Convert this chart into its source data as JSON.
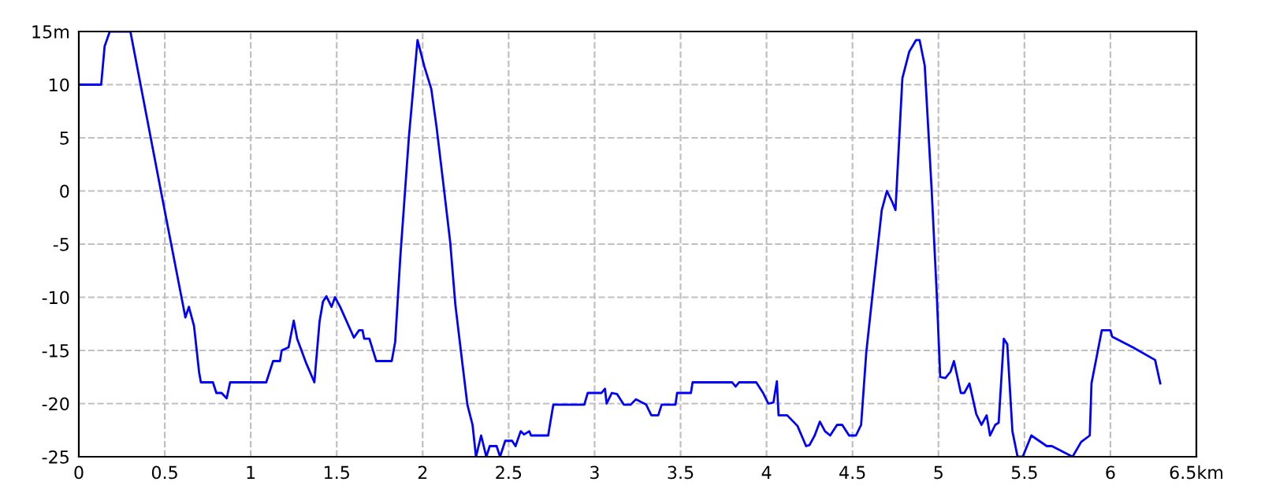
{
  "chart_data": {
    "type": "line",
    "grid": true,
    "legend": false,
    "marker": "none",
    "line_style": "solid",
    "xlim": [
      0,
      6.5
    ],
    "ylim": [
      -25,
      15
    ],
    "xticks": [
      0,
      0.5,
      1,
      1.5,
      2,
      2.5,
      3,
      3.5,
      4,
      4.5,
      5,
      5.5,
      6,
      {
        "value": 6.5,
        "label": "6.5km"
      }
    ],
    "yticks": [
      -25,
      -20,
      -15,
      -10,
      -5,
      0,
      5,
      10,
      {
        "value": 15,
        "label": "15m"
      }
    ],
    "series": [
      {
        "color": "#0000ff",
        "x": [
          0,
          0.13,
          0.15,
          0.18,
          0.3,
          0.475,
          0.62,
          0.64,
          0.67,
          0.7,
          0.71,
          0.78,
          0.8,
          0.83,
          0.86,
          0.88,
          1.09,
          1.13,
          1.17,
          1.18,
          1.22,
          1.25,
          1.27,
          1.32,
          1.37,
          1.4,
          1.42,
          1.44,
          1.47,
          1.49,
          1.52,
          1.6,
          1.63,
          1.65,
          1.66,
          1.69,
          1.73,
          1.82,
          1.84,
          1.87,
          1.92,
          1.97,
          2.01,
          2.05,
          2.08,
          2.12,
          2.16,
          2.19,
          2.23,
          2.26,
          2.29,
          2.31,
          2.34,
          2.37,
          2.39,
          2.43,
          2.45,
          2.48,
          2.52,
          2.54,
          2.57,
          2.59,
          2.62,
          2.63,
          2.73,
          2.74,
          2.76,
          2.94,
          2.96,
          3.04,
          3.06,
          3.07,
          3.1,
          3.13,
          3.17,
          3.21,
          3.24,
          3.3,
          3.33,
          3.37,
          3.39,
          3.47,
          3.48,
          3.56,
          3.57,
          3.8,
          3.82,
          3.84,
          3.94,
          3.98,
          4.01,
          4.04,
          4.06,
          4.07,
          4.12,
          4.18,
          4.23,
          4.25,
          4.28,
          4.31,
          4.34,
          4.37,
          4.41,
          4.44,
          4.48,
          4.52,
          4.55,
          4.58,
          4.62,
          4.67,
          4.7,
          4.73,
          4.75,
          4.79,
          4.83,
          4.87,
          4.89,
          4.92,
          4.96,
          4.99,
          5.01,
          5.04,
          5.07,
          5.09,
          5.13,
          5.15,
          5.18,
          5.22,
          5.25,
          5.28,
          5.3,
          5.33,
          5.35,
          5.38,
          5.4,
          5.43,
          5.46,
          5.49,
          5.54,
          5.63,
          5.66,
          5.78,
          5.83,
          5.88,
          5.89,
          5.95,
          6.0,
          6.01,
          6.13,
          6.26,
          6.29
        ],
        "values": [
          10,
          10,
          13.6,
          15,
          15,
          0.2,
          -11.9,
          -10.9,
          -12.7,
          -17.1,
          -18,
          -18,
          -19,
          -19,
          -19.5,
          -18,
          -18,
          -16,
          -16,
          -15,
          -14.7,
          -12.2,
          -13.9,
          -16.1,
          -18,
          -12.3,
          -10.4,
          -9.9,
          -10.9,
          -10,
          -10.9,
          -13.8,
          -13.1,
          -13.1,
          -13.9,
          -13.9,
          -16,
          -16,
          -14.2,
          -6.2,
          5.1,
          14.2,
          11.7,
          9.6,
          6.1,
          0.7,
          -4.8,
          -10.7,
          -16.1,
          -20.1,
          -22,
          -25,
          -23,
          -25,
          -24,
          -24,
          -25,
          -23.5,
          -23.5,
          -24,
          -22.6,
          -22.9,
          -22.6,
          -23,
          -23,
          -22,
          -20.1,
          -20.1,
          -19,
          -19,
          -18.6,
          -20,
          -19,
          -19.1,
          -20.1,
          -20.1,
          -19.6,
          -20.1,
          -21.1,
          -21.1,
          -20.1,
          -20.1,
          -19,
          -19,
          -18,
          -18,
          -18.4,
          -18,
          -18,
          -19,
          -20,
          -19.9,
          -17.9,
          -21.1,
          -21.1,
          -22.1,
          -24,
          -23.9,
          -23,
          -21.7,
          -22.6,
          -23,
          -22,
          -22,
          -23,
          -23,
          -22,
          -15.2,
          -9.2,
          -1.8,
          0,
          -1,
          -1.8,
          10.6,
          13.1,
          14.2,
          14.2,
          11.8,
          0.2,
          -9.7,
          -17.5,
          -17.6,
          -17,
          -16,
          -19,
          -19,
          -18.1,
          -21,
          -22,
          -21.1,
          -23,
          -22,
          -21.8,
          -13.9,
          -14.4,
          -22.6,
          -25,
          -25,
          -23,
          -24,
          -24,
          -25,
          -23.6,
          -23,
          -18.1,
          -13.1,
          -13.1,
          -13.7,
          -14.7,
          -15.9,
          -18.1
        ]
      }
    ]
  }
}
